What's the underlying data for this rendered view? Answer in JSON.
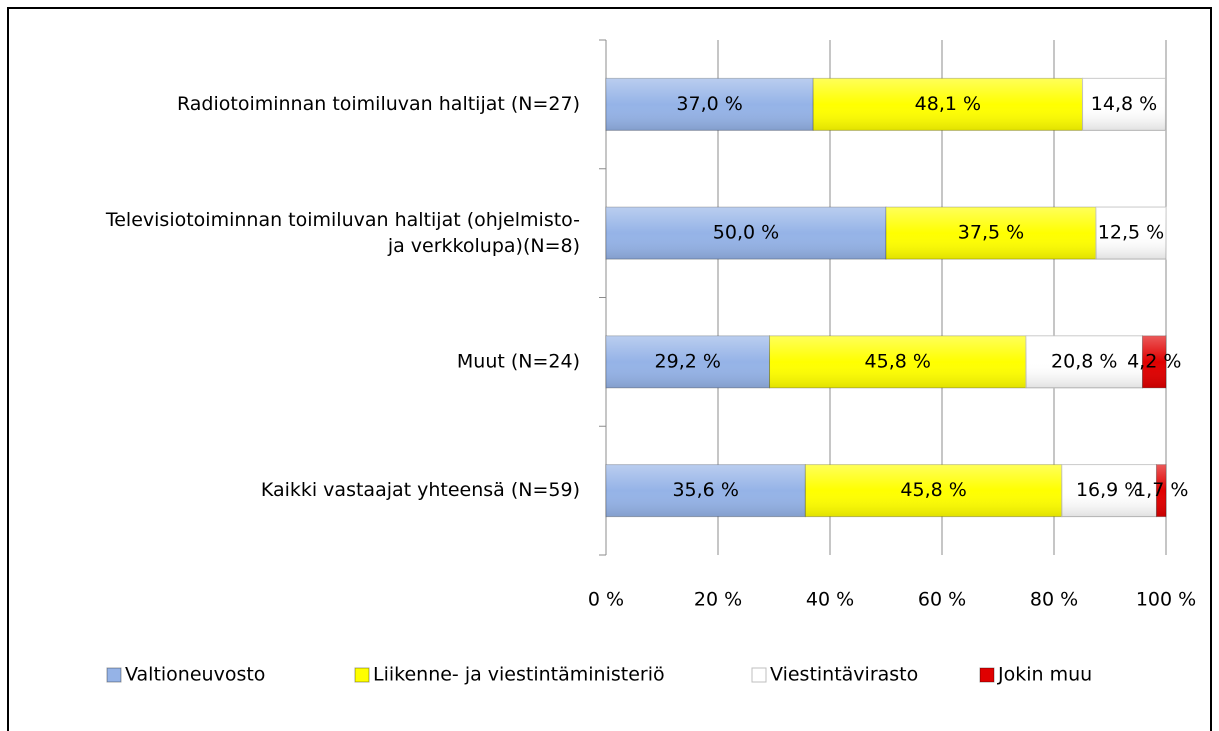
{
  "chart_data": {
    "type": "stacked-bar-horizontal",
    "categories": [
      "Radiotoiminnan toimiluvan haltijat (N=27)",
      "Televisiotoiminnan toimiluvan haltijat (ohjelmisto-\nja verkkolupa)(N=8)",
      "Muut (N=24)",
      "Kaikki vastaajat yhteensä (N=59)"
    ],
    "series": [
      {
        "name": "Valtioneuvosto",
        "color": "#95b3e7",
        "values": [
          37.0,
          50.0,
          29.2,
          35.6
        ],
        "value_labels": [
          "37,0 %",
          "50,0 %",
          "29,2 %",
          "35,6 %"
        ]
      },
      {
        "name": "Liikenne- ja viestintäministeriö",
        "color": "#ffff00",
        "values": [
          48.1,
          37.5,
          45.8,
          45.8
        ],
        "value_labels": [
          "48,1 %",
          "37,5 %",
          "45,8 %",
          "45,8 %"
        ]
      },
      {
        "name": "Viestintävirasto",
        "color": "#ffffff",
        "values": [
          14.8,
          12.5,
          20.8,
          16.9
        ],
        "value_labels": [
          "14,8 %",
          "12,5 %",
          "20,8 %",
          "16,9 %"
        ]
      },
      {
        "name": "Jokin muu",
        "color": "#e00000",
        "values": [
          null,
          null,
          4.2,
          1.7
        ],
        "value_labels": [
          null,
          null,
          "4,2 %",
          "1,7 %"
        ]
      }
    ],
    "xlim": [
      0,
      100
    ],
    "xticks": [
      {
        "value": 0,
        "label": "0 %"
      },
      {
        "value": 20,
        "label": "20 %"
      },
      {
        "value": 40,
        "label": "40 %"
      },
      {
        "value": 60,
        "label": "60 %"
      },
      {
        "value": 80,
        "label": "80 %"
      },
      {
        "value": 100,
        "label": "100 %"
      }
    ],
    "grid": true,
    "legend": "bottom"
  }
}
